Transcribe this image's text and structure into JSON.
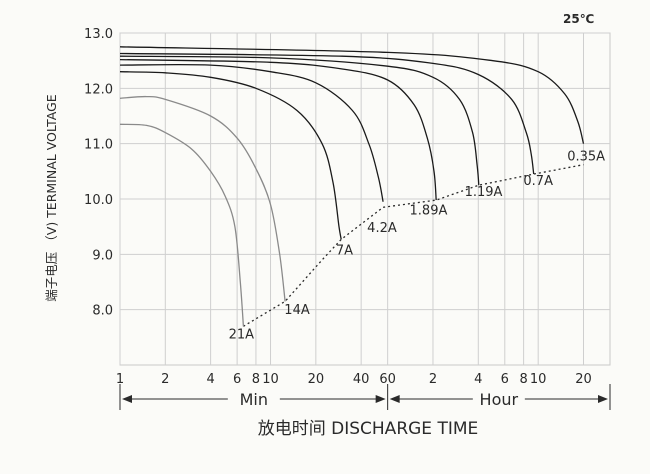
{
  "chart_data": {
    "type": "line",
    "title": "",
    "temperature_note": "25℃",
    "ylabel": "端子电压 （V) TERMINAL VOLTAGE",
    "xlabel": "放电时间   DISCHARGE TIME",
    "ylim": [
      7.0,
      13.0
    ],
    "y_ticks": [
      "13.0",
      "12.0",
      "11.0",
      "10.0",
      "9.0",
      "8.0"
    ],
    "y_tick_values": [
      13.0,
      12.0,
      11.0,
      10.0,
      9.0,
      8.0
    ],
    "x_scale": "log",
    "x_unit": "minutes",
    "xlim_minutes": [
      1,
      1800
    ],
    "x_ticks": [
      {
        "label": "1",
        "minutes": 1
      },
      {
        "label": "2",
        "minutes": 2
      },
      {
        "label": "4",
        "minutes": 4
      },
      {
        "label": "6",
        "minutes": 6
      },
      {
        "label": "8",
        "minutes": 8
      },
      {
        "label": "10",
        "minutes": 10
      },
      {
        "label": "20",
        "minutes": 20
      },
      {
        "label": "40",
        "minutes": 40
      },
      {
        "label": "60",
        "minutes": 60
      },
      {
        "label": "2",
        "minutes": 120
      },
      {
        "label": "4",
        "minutes": 240
      },
      {
        "label": "6",
        "minutes": 360
      },
      {
        "label": "8",
        "minutes": 480
      },
      {
        "label": "10",
        "minutes": 600
      },
      {
        "label": "20",
        "minutes": 1200
      }
    ],
    "grid_minutes": [
      1,
      2,
      4,
      6,
      8,
      10,
      20,
      40,
      60,
      120,
      240,
      360,
      480,
      600,
      1200
    ],
    "range_labels": {
      "min": "Min",
      "hour": "Hour"
    },
    "grid": true,
    "series": [
      {
        "name": "21A",
        "color": "#8a8a8a",
        "points": [
          [
            1,
            11.35
          ],
          [
            1.5,
            11.33
          ],
          [
            2,
            11.2
          ],
          [
            3,
            10.9
          ],
          [
            4,
            10.5
          ],
          [
            5,
            10.05
          ],
          [
            5.8,
            9.5
          ],
          [
            6.3,
            8.5
          ],
          [
            6.6,
            7.7
          ]
        ]
      },
      {
        "name": "14A",
        "color": "#8a8a8a",
        "points": [
          [
            1,
            11.82
          ],
          [
            1.5,
            11.85
          ],
          [
            2,
            11.8
          ],
          [
            4,
            11.5
          ],
          [
            6,
            11.1
          ],
          [
            8,
            10.55
          ],
          [
            10,
            9.9
          ],
          [
            11.5,
            9.0
          ],
          [
            12.5,
            8.15
          ]
        ]
      },
      {
        "name": "7A",
        "color": "#1a1a1a",
        "points": [
          [
            1,
            12.3
          ],
          [
            2,
            12.28
          ],
          [
            4,
            12.2
          ],
          [
            8,
            12.0
          ],
          [
            15,
            11.6
          ],
          [
            22,
            11.0
          ],
          [
            26,
            10.3
          ],
          [
            28.5,
            9.5
          ],
          [
            29.5,
            9.27
          ]
        ]
      },
      {
        "name": "4.2A",
        "color": "#1a1a1a",
        "points": [
          [
            1,
            12.42
          ],
          [
            4,
            12.42
          ],
          [
            10,
            12.3
          ],
          [
            20,
            12.1
          ],
          [
            35,
            11.6
          ],
          [
            45,
            11.0
          ],
          [
            52,
            10.4
          ],
          [
            56,
            9.95
          ]
        ]
      },
      {
        "name": "1.89A",
        "color": "#1a1a1a",
        "points": [
          [
            1,
            12.52
          ],
          [
            10,
            12.47
          ],
          [
            30,
            12.35
          ],
          [
            60,
            12.15
          ],
          [
            90,
            11.7
          ],
          [
            110,
            11.1
          ],
          [
            122,
            10.5
          ],
          [
            126,
            9.98
          ]
        ]
      },
      {
        "name": "1.19A",
        "color": "#1a1a1a",
        "points": [
          [
            1,
            12.58
          ],
          [
            10,
            12.55
          ],
          [
            60,
            12.4
          ],
          [
            120,
            12.2
          ],
          [
            180,
            11.8
          ],
          [
            220,
            11.2
          ],
          [
            236,
            10.6
          ],
          [
            242,
            10.25
          ]
        ]
      },
      {
        "name": "0.7A",
        "color": "#1a1a1a",
        "points": [
          [
            1,
            12.63
          ],
          [
            30,
            12.58
          ],
          [
            120,
            12.45
          ],
          [
            240,
            12.25
          ],
          [
            400,
            11.8
          ],
          [
            500,
            11.2
          ],
          [
            540,
            10.8
          ],
          [
            560,
            10.45
          ]
        ]
      },
      {
        "name": "0.35A",
        "color": "#1a1a1a",
        "points": [
          [
            1,
            12.75
          ],
          [
            60,
            12.65
          ],
          [
            300,
            12.5
          ],
          [
            600,
            12.3
          ],
          [
            900,
            11.9
          ],
          [
            1100,
            11.4
          ],
          [
            1200,
            11.0
          ]
        ]
      }
    ],
    "end_voltage_line": {
      "style": "dotted",
      "points": [
        [
          6.6,
          7.7
        ],
        [
          12.5,
          8.15
        ],
        [
          22,
          8.9
        ],
        [
          29.5,
          9.27
        ],
        [
          56,
          9.85
        ],
        [
          126,
          9.98
        ],
        [
          242,
          10.25
        ],
        [
          560,
          10.45
        ],
        [
          1200,
          10.62
        ]
      ]
    },
    "annotations": [
      {
        "text": "21A",
        "x": 6.4,
        "y": 7.48
      },
      {
        "text": "14A",
        "x": 15,
        "y": 7.92
      },
      {
        "text": "7A",
        "x": 31,
        "y": 9.0
      },
      {
        "text": "4.2A",
        "x": 55,
        "y": 9.4
      },
      {
        "text": "1.89A",
        "x": 112,
        "y": 9.72
      },
      {
        "text": "1.19A",
        "x": 260,
        "y": 10.05
      },
      {
        "text": "0.7A",
        "x": 600,
        "y": 10.25
      },
      {
        "text": "0.35A",
        "x": 1250,
        "y": 10.7
      }
    ]
  }
}
